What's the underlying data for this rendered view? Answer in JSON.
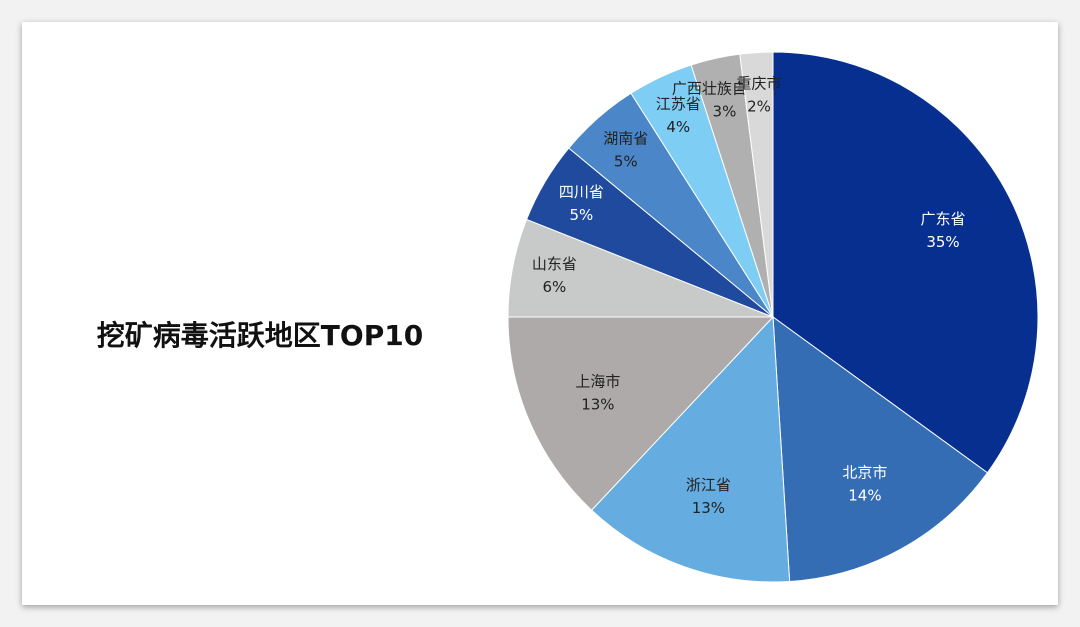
{
  "chart_data": {
    "type": "pie",
    "title": "挖矿病毒活跃地区TOP10",
    "categories": [
      "广东省",
      "北京市",
      "浙江省",
      "上海市",
      "山东省",
      "四川省",
      "湖南省",
      "江苏省",
      "广西壮族自治区",
      "重庆市"
    ],
    "values": [
      35,
      14,
      13,
      13,
      6,
      5,
      5,
      4,
      3,
      2
    ],
    "value_labels": [
      "35%",
      "14%",
      "13%",
      "13%",
      "6%",
      "5%",
      "5%",
      "4%",
      "3%",
      "2%"
    ],
    "colors": [
      "#062f8f",
      "#356db5",
      "#65ace0",
      "#aeaaaa",
      "#c8c9c9",
      "#1f4a9e",
      "#4a86c8",
      "#7ecdf4",
      "#b0b0b0",
      "#d9d9d9"
    ]
  }
}
